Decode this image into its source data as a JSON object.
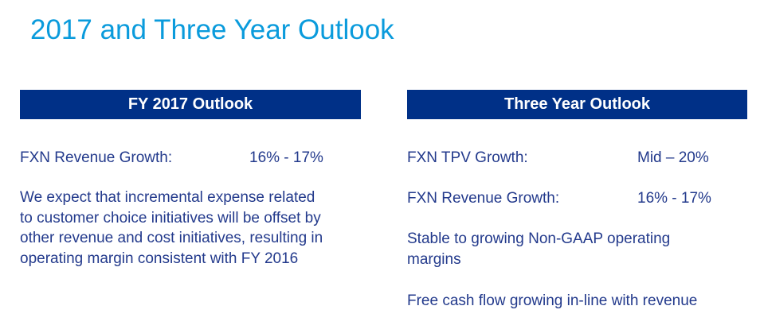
{
  "title": "2017 and Three Year Outlook",
  "left": {
    "header": "FY 2017 Outlook",
    "metric_label": "FXN Revenue Growth:",
    "metric_value": "16% - 17%",
    "paragraph": [
      "We expect that incremental expense related",
      "to customer choice initiatives will be offset by",
      "other revenue and cost initiatives, resulting in",
      "operating margin consistent with FY 2016"
    ]
  },
  "right": {
    "header": "Three Year Outlook",
    "metrics": [
      {
        "label": "FXN TPV Growth:",
        "value": "Mid – 20%"
      },
      {
        "label": "FXN Revenue Growth:",
        "value": "16% - 17%"
      }
    ],
    "statement1": [
      "Stable to growing Non-GAAP operating",
      "margins"
    ],
    "statement2": "Free cash flow growing in-line with revenue"
  },
  "colors": {
    "title": "#0a9bdc",
    "header_bg": "#003087",
    "body_text": "#233a8c"
  }
}
